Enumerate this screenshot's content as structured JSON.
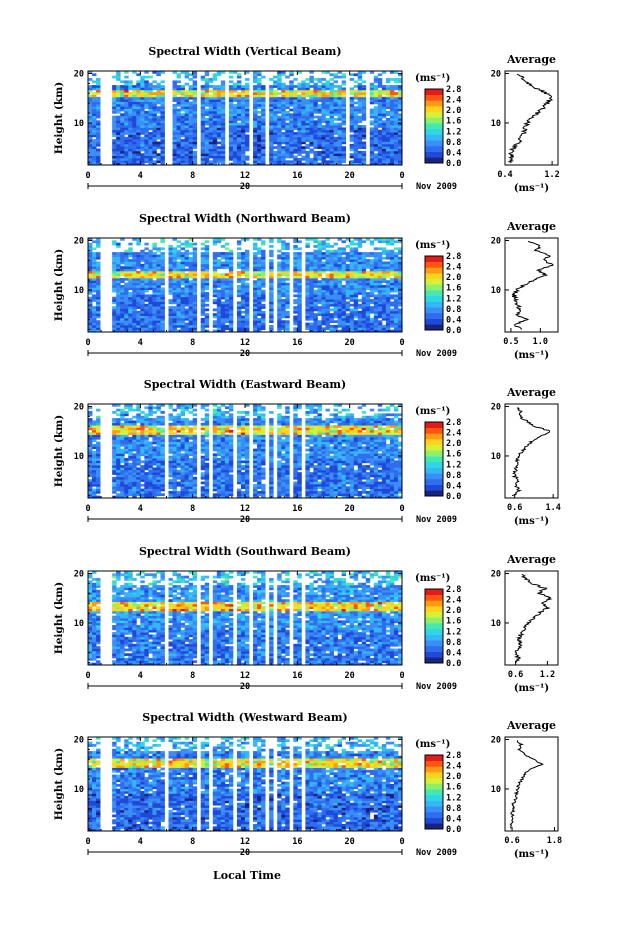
{
  "figure": {
    "xlabel": "Local Time",
    "date_label": "Nov 2009",
    "day_label": "20",
    "colorbar_unit": "(ms⁻¹)",
    "colorbar_ticks": [
      "0.0",
      "0.4",
      "0.8",
      "1.2",
      "1.6",
      "2.0",
      "2.4",
      "2.8"
    ],
    "colormap": [
      "#1a237e",
      "#1f49d8",
      "#2f6df0",
      "#3a8ff7",
      "#35b7f5",
      "#2fd6e6",
      "#44e8b0",
      "#8cf06a",
      "#d6f03a",
      "#ffd21e",
      "#ff9a14",
      "#ff5510",
      "#e01c1c"
    ],
    "avg_title": "Average",
    "avg_xunit": "(ms⁻¹)"
  },
  "chart_data": [
    {
      "type": "heatmap",
      "title": "Spectral Width (Vertical Beam)",
      "ylabel": "Height (km)",
      "xlim": [
        0,
        24
      ],
      "xticks": [
        "0",
        "4",
        "8",
        "12",
        "16",
        "20",
        "0"
      ],
      "ylim": [
        1.5,
        20.5
      ],
      "yticks": [
        "10",
        "20"
      ],
      "clim": [
        0.0,
        2.8
      ],
      "gaps_hours": [
        [
          1.0,
          1.4
        ],
        [
          1.6,
          1.8
        ],
        [
          5.9,
          6.6
        ],
        [
          8.2,
          8.6
        ],
        [
          10.4,
          10.8
        ],
        [
          12.2,
          12.6
        ],
        [
          13.4,
          13.7
        ],
        [
          17.4,
          17.6
        ],
        [
          19.8,
          20.1
        ],
        [
          21.2,
          21.6
        ]
      ],
      "enhanced_layer_km": [
        15.5,
        16.5
      ],
      "mean_level": 0.75,
      "average": {
        "title": "Average",
        "xlim": [
          0.4,
          1.3
        ],
        "xticks": [
          "0.4",
          "1.2"
        ],
        "xunit": "(ms⁻¹)",
        "height_km": [
          2,
          3,
          4,
          5,
          6,
          7,
          8,
          9,
          10,
          11,
          12,
          13,
          14,
          15,
          16,
          17,
          18,
          19,
          20
        ],
        "values": [
          0.48,
          0.52,
          0.5,
          0.55,
          0.62,
          0.68,
          0.72,
          0.74,
          0.78,
          0.85,
          0.95,
          1.05,
          1.12,
          1.18,
          1.1,
          0.92,
          0.8,
          0.7,
          0.62
        ]
      }
    },
    {
      "type": "heatmap",
      "title": "Spectral Width (Northward Beam)",
      "ylabel": "Height (km)",
      "xlim": [
        0,
        24
      ],
      "xticks": [
        "0",
        "4",
        "8",
        "12",
        "16",
        "20",
        "0"
      ],
      "ylim": [
        1.5,
        20.5
      ],
      "yticks": [
        "10",
        "20"
      ],
      "clim": [
        0.0,
        2.8
      ],
      "gaps_hours": [
        [
          1.0,
          1.4
        ],
        [
          1.6,
          1.8
        ],
        [
          5.9,
          6.3
        ],
        [
          8.2,
          8.5
        ],
        [
          9.2,
          9.5
        ],
        [
          11.0,
          11.3
        ],
        [
          12.3,
          12.7
        ],
        [
          13.5,
          13.8
        ],
        [
          14.3,
          14.6
        ],
        [
          15.3,
          15.6
        ],
        [
          16.2,
          16.5
        ]
      ],
      "enhanced_layer_km": [
        12.5,
        14.0
      ],
      "mean_level": 0.8,
      "average": {
        "title": "Average",
        "xlim": [
          0.4,
          1.3
        ],
        "xticks": [
          "0.5",
          "1.0"
        ],
        "xunit": "(ms⁻¹)",
        "height_km": [
          2,
          3,
          4,
          5,
          6,
          7,
          8,
          9,
          10,
          11,
          12,
          13,
          14,
          15,
          16,
          17,
          18,
          19,
          20
        ],
        "values": [
          0.7,
          0.55,
          0.78,
          0.6,
          0.66,
          0.62,
          0.58,
          0.55,
          0.6,
          0.72,
          0.88,
          1.1,
          0.95,
          1.2,
          1.05,
          1.15,
          0.92,
          1.0,
          0.75
        ]
      }
    },
    {
      "type": "heatmap",
      "title": "Spectral Width (Eastward Beam)",
      "ylabel": "Height (km)",
      "xlim": [
        0,
        24
      ],
      "xticks": [
        "0",
        "4",
        "8",
        "12",
        "16",
        "20",
        "0"
      ],
      "ylim": [
        1.5,
        20.5
      ],
      "yticks": [
        "10",
        "20"
      ],
      "clim": [
        0.0,
        2.8
      ],
      "gaps_hours": [
        [
          1.0,
          1.4
        ],
        [
          1.6,
          1.8
        ],
        [
          5.9,
          6.3
        ],
        [
          8.2,
          8.5
        ],
        [
          9.2,
          9.5
        ],
        [
          11.0,
          11.3
        ],
        [
          12.3,
          12.7
        ],
        [
          13.5,
          13.8
        ],
        [
          14.3,
          14.6
        ],
        [
          15.3,
          15.6
        ],
        [
          16.2,
          16.5
        ]
      ],
      "enhanced_layer_km": [
        14.5,
        16.0
      ],
      "mean_level": 0.8,
      "average": {
        "title": "Average",
        "xlim": [
          0.4,
          1.5
        ],
        "xticks": [
          "0.6",
          "1.4"
        ],
        "xunit": "(ms⁻¹)",
        "height_km": [
          2,
          3,
          4,
          5,
          6,
          7,
          8,
          9,
          10,
          11,
          12,
          13,
          14,
          15,
          16,
          17,
          18,
          19,
          20
        ],
        "values": [
          0.58,
          0.7,
          0.62,
          0.66,
          0.6,
          0.62,
          0.64,
          0.66,
          0.68,
          0.75,
          0.85,
          0.95,
          1.15,
          1.35,
          1.0,
          0.85,
          0.7,
          0.75,
          0.62
        ]
      }
    },
    {
      "type": "heatmap",
      "title": "Spectral Width (Southward Beam)",
      "ylabel": "Height (km)",
      "xlim": [
        0,
        24
      ],
      "xticks": [
        "0",
        "4",
        "8",
        "12",
        "16",
        "20",
        "0"
      ],
      "ylim": [
        1.5,
        20.5
      ],
      "yticks": [
        "10",
        "20"
      ],
      "clim": [
        0.0,
        2.8
      ],
      "gaps_hours": [
        [
          1.0,
          1.4
        ],
        [
          1.6,
          1.8
        ],
        [
          5.9,
          6.3
        ],
        [
          8.2,
          8.5
        ],
        [
          9.2,
          9.5
        ],
        [
          11.0,
          11.3
        ],
        [
          12.3,
          12.7
        ],
        [
          13.5,
          13.8
        ],
        [
          14.3,
          14.6
        ],
        [
          15.3,
          15.6
        ],
        [
          16.2,
          16.5
        ],
        [
          17.4,
          17.6
        ]
      ],
      "enhanced_layer_km": [
        12.5,
        14.5
      ],
      "mean_level": 0.85,
      "average": {
        "title": "Average",
        "xlim": [
          0.4,
          1.4
        ],
        "xticks": [
          "0.6",
          "1.2"
        ],
        "xunit": "(ms⁻¹)",
        "height_km": [
          2,
          3,
          4,
          5,
          6,
          7,
          8,
          9,
          10,
          11,
          12,
          13,
          14,
          15,
          16,
          17,
          18,
          19,
          20
        ],
        "values": [
          0.62,
          0.65,
          0.6,
          0.68,
          0.7,
          0.66,
          0.72,
          0.78,
          0.85,
          0.95,
          1.05,
          1.2,
          1.1,
          1.25,
          1.05,
          1.15,
          0.9,
          0.8,
          0.7
        ]
      }
    },
    {
      "type": "heatmap",
      "title": "Spectral Width (Westward Beam)",
      "ylabel": "Height (km)",
      "xlim": [
        0,
        24
      ],
      "xticks": [
        "0",
        "4",
        "8",
        "12",
        "16",
        "20",
        "0"
      ],
      "ylim": [
        1.5,
        20.5
      ],
      "yticks": [
        "10",
        "20"
      ],
      "clim": [
        0.0,
        2.8
      ],
      "gaps_hours": [
        [
          1.0,
          1.4
        ],
        [
          1.6,
          1.8
        ],
        [
          5.9,
          6.3
        ],
        [
          8.2,
          8.5
        ],
        [
          9.2,
          9.5
        ],
        [
          11.0,
          11.3
        ],
        [
          12.3,
          12.7
        ],
        [
          13.5,
          13.8
        ],
        [
          14.3,
          14.6
        ],
        [
          15.3,
          15.6
        ],
        [
          16.2,
          16.5
        ]
      ],
      "enhanced_layer_km": [
        14.5,
        16.0
      ],
      "mean_level": 0.75,
      "average": {
        "title": "Average",
        "xlim": [
          0.4,
          1.9
        ],
        "xticks": [
          "0.6",
          "1.8"
        ],
        "xunit": "(ms⁻¹)",
        "height_km": [
          2,
          3,
          4,
          5,
          6,
          7,
          8,
          9,
          10,
          11,
          12,
          13,
          14,
          15,
          16,
          17,
          18,
          19,
          20
        ],
        "values": [
          0.6,
          0.58,
          0.62,
          0.6,
          0.66,
          0.64,
          0.7,
          0.72,
          0.75,
          0.8,
          0.88,
          0.95,
          1.1,
          1.45,
          1.2,
          0.95,
          0.8,
          0.85,
          0.7
        ]
      }
    }
  ]
}
